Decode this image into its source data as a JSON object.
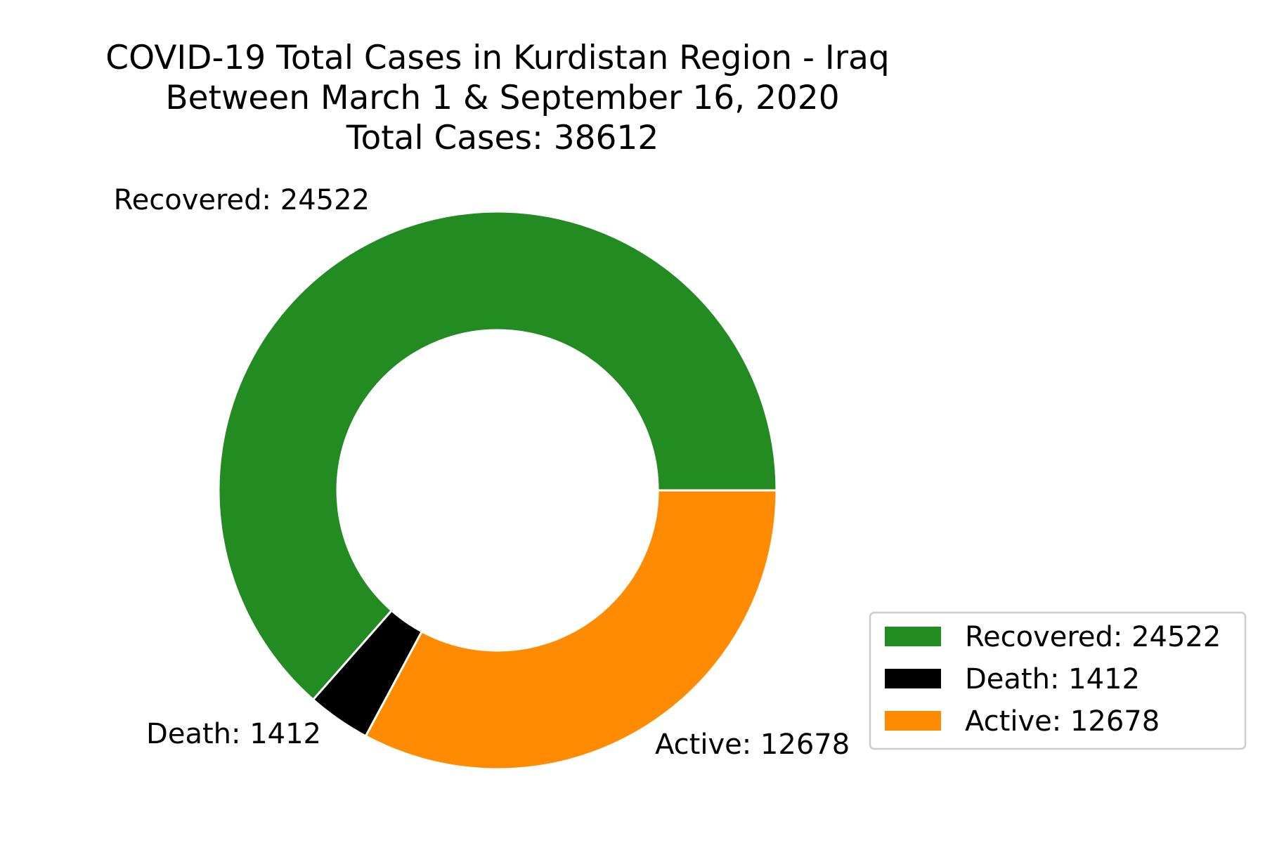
{
  "chart_data": {
    "type": "pie",
    "variant": "donut",
    "title_lines": [
      "COVID-19 Total Cases in Kurdistan Region - Iraq",
      "Between March 1 & September 16, 2020",
      "Total Cases: 38612"
    ],
    "categories": [
      "Recovered",
      "Death",
      "Active"
    ],
    "values": [
      24522,
      1412,
      12678
    ],
    "slice_labels": [
      "Recovered: 24522",
      "Death: 1412",
      "Active: 12678"
    ],
    "colors": [
      "#228b22",
      "#000000",
      "#ff8c00"
    ],
    "legend": {
      "position": "lower-right",
      "entries": [
        "Recovered: 24522",
        "Death: 1412",
        "Active: 12678"
      ]
    },
    "start_angle_deg": 0,
    "direction": "counterclockwise"
  }
}
